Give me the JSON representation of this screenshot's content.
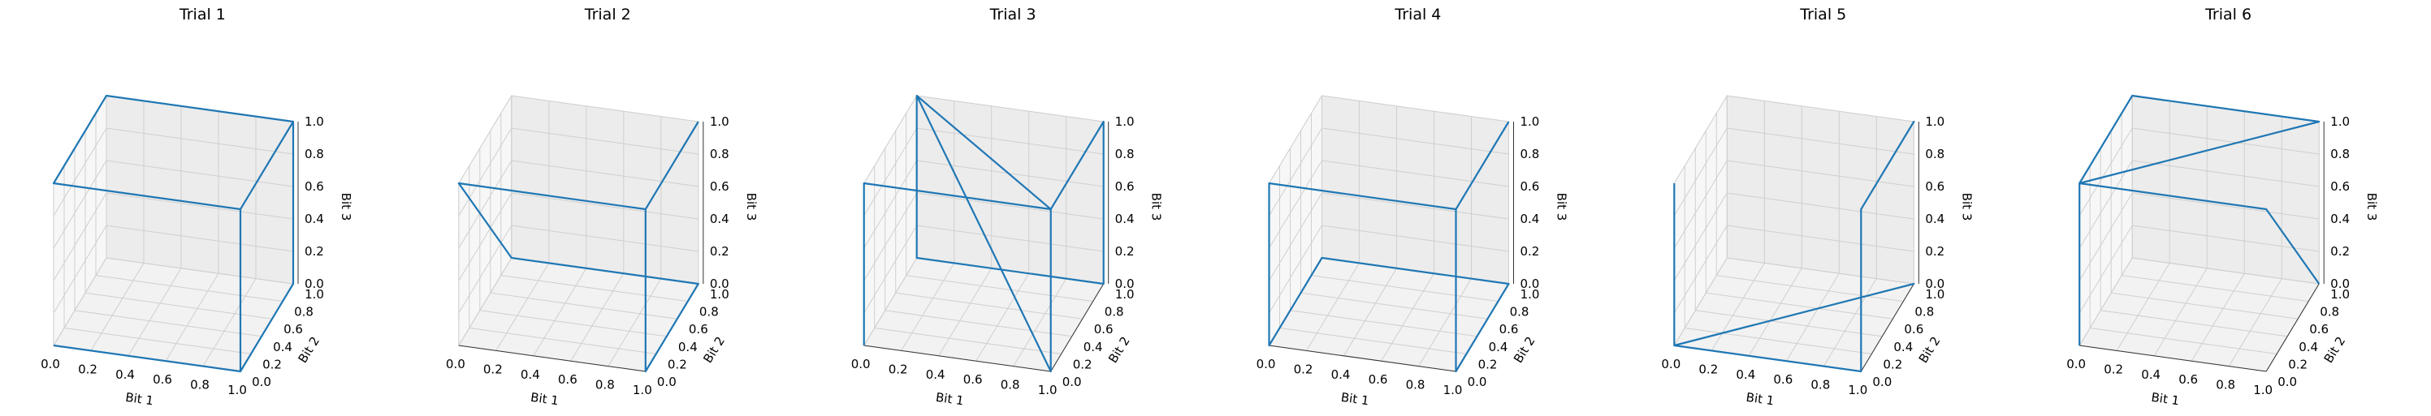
{
  "chart_data": [
    {
      "type": "line3d",
      "title": "Trial 1",
      "xlabel": "Bit 1",
      "ylabel": "Bit 2",
      "zlabel": "Bit 3",
      "xlim": [
        0,
        1
      ],
      "ylim": [
        0,
        1
      ],
      "zlim": [
        0,
        1
      ],
      "x": [
        0,
        1,
        1,
        1,
        1,
        0,
        0,
        1,
        1,
        1
      ],
      "y": [
        0,
        0,
        1,
        1,
        0,
        0,
        1,
        1,
        0,
        0
      ],
      "z": [
        0,
        0,
        0,
        1,
        1,
        1,
        1,
        1,
        1,
        0
      ]
    },
    {
      "type": "line3d",
      "title": "Trial 2",
      "xlabel": "Bit 1",
      "ylabel": "Bit 2",
      "zlabel": "Bit 3",
      "xlim": [
        0,
        1
      ],
      "ylim": [
        0,
        1
      ],
      "zlim": [
        0,
        1
      ],
      "x": [
        1,
        1,
        0,
        0,
        1,
        1,
        1,
        1
      ],
      "y": [
        1,
        0,
        0,
        1,
        1,
        0,
        0,
        1
      ],
      "z": [
        1,
        1,
        1,
        0,
        0,
        0,
        1,
        1
      ]
    },
    {
      "type": "line3d",
      "title": "Trial 3",
      "xlabel": "Bit 1",
      "ylabel": "Bit 2",
      "zlabel": "Bit 3",
      "xlim": [
        0,
        1
      ],
      "ylim": [
        0,
        1
      ],
      "zlim": [
        0,
        1
      ],
      "x": [
        0,
        0,
        1,
        1,
        1,
        0,
        0,
        1,
        1,
        0
      ],
      "y": [
        0,
        0,
        0,
        1,
        1,
        1,
        1,
        0,
        0,
        1
      ],
      "z": [
        0,
        1,
        1,
        1,
        0,
        0,
        1,
        0,
        1,
        1
      ]
    },
    {
      "type": "line3d",
      "title": "Trial 4",
      "xlabel": "Bit 1",
      "ylabel": "Bit 2",
      "zlabel": "Bit 3",
      "xlim": [
        0,
        1
      ],
      "ylim": [
        0,
        1
      ],
      "zlim": [
        0,
        1
      ],
      "x": [
        1,
        1,
        0,
        0,
        0,
        1,
        1,
        1,
        1
      ],
      "y": [
        0,
        0,
        0,
        0,
        1,
        1,
        0,
        0,
        1
      ],
      "z": [
        0,
        1,
        1,
        0,
        0,
        0,
        0,
        1,
        1
      ]
    },
    {
      "type": "line3d",
      "title": "Trial 5",
      "xlabel": "Bit 1",
      "ylabel": "Bit 2",
      "zlabel": "Bit 3",
      "xlim": [
        0,
        1
      ],
      "ylim": [
        0,
        1
      ],
      "zlim": [
        0,
        1
      ],
      "x": [
        0,
        0,
        1,
        0,
        1,
        1,
        1,
        1,
        1,
        1
      ],
      "y": [
        0,
        0,
        1,
        0,
        0,
        0,
        1,
        1,
        0,
        0
      ],
      "z": [
        1,
        0,
        0,
        0,
        0,
        1,
        1,
        1,
        1,
        1
      ]
    },
    {
      "type": "line3d",
      "title": "Trial 6",
      "xlabel": "Bit 1",
      "ylabel": "Bit 2",
      "zlabel": "Bit 3",
      "xlim": [
        0,
        1
      ],
      "ylim": [
        0,
        1
      ],
      "zlim": [
        0,
        1
      ],
      "x": [
        0,
        0,
        0,
        1,
        1,
        0,
        1,
        1,
        1
      ],
      "y": [
        0,
        0,
        1,
        1,
        1,
        0,
        0,
        1,
        1
      ],
      "z": [
        0,
        1,
        1,
        1,
        1,
        1,
        1,
        0,
        0
      ]
    }
  ]
}
